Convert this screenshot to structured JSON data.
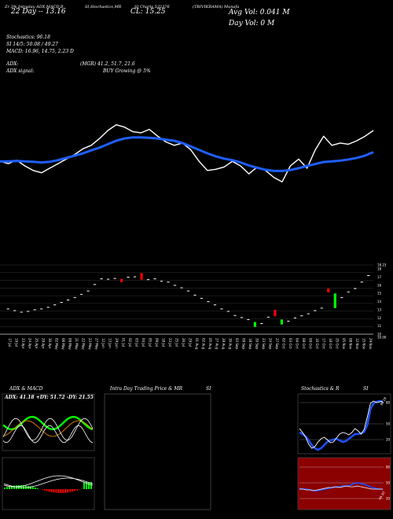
{
  "header": {
    "row1": [
      "Zr 3% Intraday ADX,MACD,B",
      "SI,Stochastics,MR",
      "SI Charts 532376",
      "(TRIVIKRAMA) Munafa"
    ],
    "date_range": "22 Day -- 13.16",
    "close": "CL: 15.25",
    "avg_vol": "Avg Vol: 0.041 M",
    "day_vol": "Day Vol: 0   M",
    "stoch": "Stochastics: 96.18",
    "si": "SI 14/5: 50.08 / 49.27",
    "macd": "MACD: 16.96, 14.75, 2.23 D",
    "adx": "ADX:",
    "adx_val": "(MGR) 41.2, 51.7, 21.6",
    "adx_signal": "ADX  signal:",
    "buy": "BUY Growing @ 5%"
  },
  "chart_data": [
    {
      "type": "line",
      "title": "",
      "series": [
        {
          "name": "price",
          "color": "#ffffff",
          "values": [
            14.2,
            14.1,
            14.25,
            14.0,
            13.8,
            13.7,
            13.9,
            14.1,
            14.3,
            14.5,
            14.75,
            14.9,
            15.2,
            15.55,
            15.8,
            15.7,
            15.5,
            15.45,
            15.6,
            15.3,
            15.05,
            14.9,
            15.0,
            14.7,
            14.2,
            13.8,
            13.85,
            13.95,
            14.2,
            14.0,
            13.65,
            13.95,
            13.8,
            13.5,
            13.3,
            14.0,
            14.3,
            13.9,
            14.7,
            15.3,
            14.9,
            15.0,
            14.95,
            15.1,
            15.3,
            15.55
          ]
        },
        {
          "name": "sma",
          "color": "#1f5fff",
          "values": [
            14.2,
            14.2,
            14.22,
            14.2,
            14.18,
            14.15,
            14.18,
            14.25,
            14.35,
            14.45,
            14.55,
            14.68,
            14.8,
            14.95,
            15.1,
            15.2,
            15.25,
            15.25,
            15.23,
            15.2,
            15.15,
            15.1,
            15.0,
            14.85,
            14.7,
            14.55,
            14.42,
            14.32,
            14.25,
            14.15,
            14.02,
            13.92,
            13.83,
            13.78,
            13.78,
            13.82,
            13.9,
            14.0,
            14.08,
            14.17,
            14.2,
            14.23,
            14.28,
            14.35,
            14.45,
            14.6
          ]
        }
      ]
    },
    {
      "type": "bar",
      "title": "",
      "ylim": [
        10,
        18.5
      ],
      "y_ticks": [
        "18.23",
        "18",
        "17",
        "16",
        "15",
        "14",
        "13",
        "12",
        "11",
        "10",
        "10.00"
      ],
      "x_labels": [
        "17 Jul",
        "19 Jul",
        "23 Apr",
        "24 Apr",
        "25 Apr",
        "29 Apr",
        "30 Apr",
        "02 May",
        "06 May",
        "09 May",
        "21 May",
        "22 May",
        "23 May",
        "27 May",
        "12 Jun",
        "13 Jun",
        "29 Jun",
        "01 Jul",
        "02 Jul",
        "03 Jul",
        "04 Jul",
        "05 Jul",
        "09 Jul",
        "18 Jul",
        "23 Jul",
        "25 Jul",
        "26 Jul",
        "29 Jul",
        "01 Aug",
        "02 Aug",
        "05 Aug",
        "27 Aug",
        "28 Aug",
        "30 Aug",
        "03 Sep",
        "09 Sep",
        "18 Sep",
        "20 Sep",
        "23 Sep",
        "24 Sep",
        "27 Sep",
        "02 Oct",
        "03 Oct",
        "04 Oct",
        "08 Oct",
        "09 Oct",
        "16 Oct",
        "17 Oct",
        "18 Oct",
        "25 Oct",
        "05 Nov",
        "08 Nov",
        "12 Nov",
        "15 Nov",
        "29 Nov"
      ],
      "candles": [
        [
          13.1,
          13.1,
          "w"
        ],
        [
          12.9,
          12.9,
          "w"
        ],
        [
          12.7,
          12.7,
          "w"
        ],
        [
          12.8,
          12.8,
          "w"
        ],
        [
          13.0,
          13.0,
          "w"
        ],
        [
          13.1,
          13.1,
          "w"
        ],
        [
          13.3,
          13.3,
          "w"
        ],
        [
          13.6,
          13.6,
          "w"
        ],
        [
          13.9,
          13.9,
          "w"
        ],
        [
          14.2,
          14.2,
          "w"
        ],
        [
          14.5,
          14.5,
          "w"
        ],
        [
          14.9,
          14.9,
          "w"
        ],
        [
          15.3,
          15.3,
          "w"
        ],
        [
          16.1,
          16.1,
          "w"
        ],
        [
          16.8,
          16.8,
          "w"
        ],
        [
          16.75,
          16.75,
          "w"
        ],
        [
          16.85,
          16.85,
          "w"
        ],
        [
          16.8,
          16.4,
          "r"
        ],
        [
          17.0,
          17.0,
          "w"
        ],
        [
          17.05,
          17.05,
          "w"
        ],
        [
          17.5,
          16.7,
          "r"
        ],
        [
          16.7,
          16.7,
          "w"
        ],
        [
          16.8,
          16.8,
          "w"
        ],
        [
          16.5,
          16.5,
          "w"
        ],
        [
          16.4,
          16.4,
          "w"
        ],
        [
          16.0,
          16.0,
          "w"
        ],
        [
          15.7,
          15.7,
          "w"
        ],
        [
          15.3,
          15.3,
          "w"
        ],
        [
          14.8,
          14.8,
          "w"
        ],
        [
          14.4,
          14.4,
          "w"
        ],
        [
          14.0,
          14.0,
          "w"
        ],
        [
          13.6,
          13.6,
          "w"
        ],
        [
          13.1,
          13.1,
          "w"
        ],
        [
          12.8,
          12.8,
          "w"
        ],
        [
          12.3,
          12.3,
          "w"
        ],
        [
          12.05,
          12.05,
          "w"
        ],
        [
          11.8,
          11.8,
          "w"
        ],
        [
          11.5,
          10.9,
          "g"
        ],
        [
          11.3,
          11.3,
          "w"
        ],
        [
          12.1,
          12.1,
          "w"
        ],
        [
          13.0,
          12.2,
          "r"
        ],
        [
          11.8,
          11.2,
          "g"
        ],
        [
          11.6,
          11.6,
          "w"
        ],
        [
          12.0,
          12.0,
          "w"
        ],
        [
          12.25,
          12.25,
          "w"
        ],
        [
          12.5,
          12.5,
          "w"
        ],
        [
          12.9,
          12.9,
          "w"
        ],
        [
          13.2,
          13.2,
          "w"
        ],
        [
          15.6,
          15.15,
          "r"
        ],
        [
          15.0,
          13.2,
          "g"
        ],
        [
          14.5,
          14.5,
          "w"
        ],
        [
          15.2,
          15.2,
          "w"
        ],
        [
          15.6,
          15.6,
          "w"
        ],
        [
          16.4,
          16.4,
          "w"
        ],
        [
          17.2,
          17.2,
          "w"
        ]
      ]
    }
  ],
  "panels": {
    "adx": {
      "title": "ADX  & MACD",
      "header": "ADX: 41.18  +DY: 51.72  -DY: 21.55"
    },
    "intra": {
      "title": "Intra  Day Trading Price  & MR",
      "title2": "SI"
    },
    "stoch": {
      "title": "Stochastics & R",
      "title2": "SI",
      "mark_top": "96.18",
      "ticks_top": [
        "80",
        "50",
        "20"
      ],
      "ticks_bot": [
        "80",
        "50",
        "20"
      ],
      "mark_bot": "49.30"
    }
  },
  "colors": {
    "bg": "#000000",
    "price": "#ffffff",
    "sma": "#1f5fff",
    "green": "#00ff00",
    "red": "#ff0000",
    "orange": "#ff8c00",
    "blue": "#1e4fff",
    "darkred": "#8b0000"
  }
}
